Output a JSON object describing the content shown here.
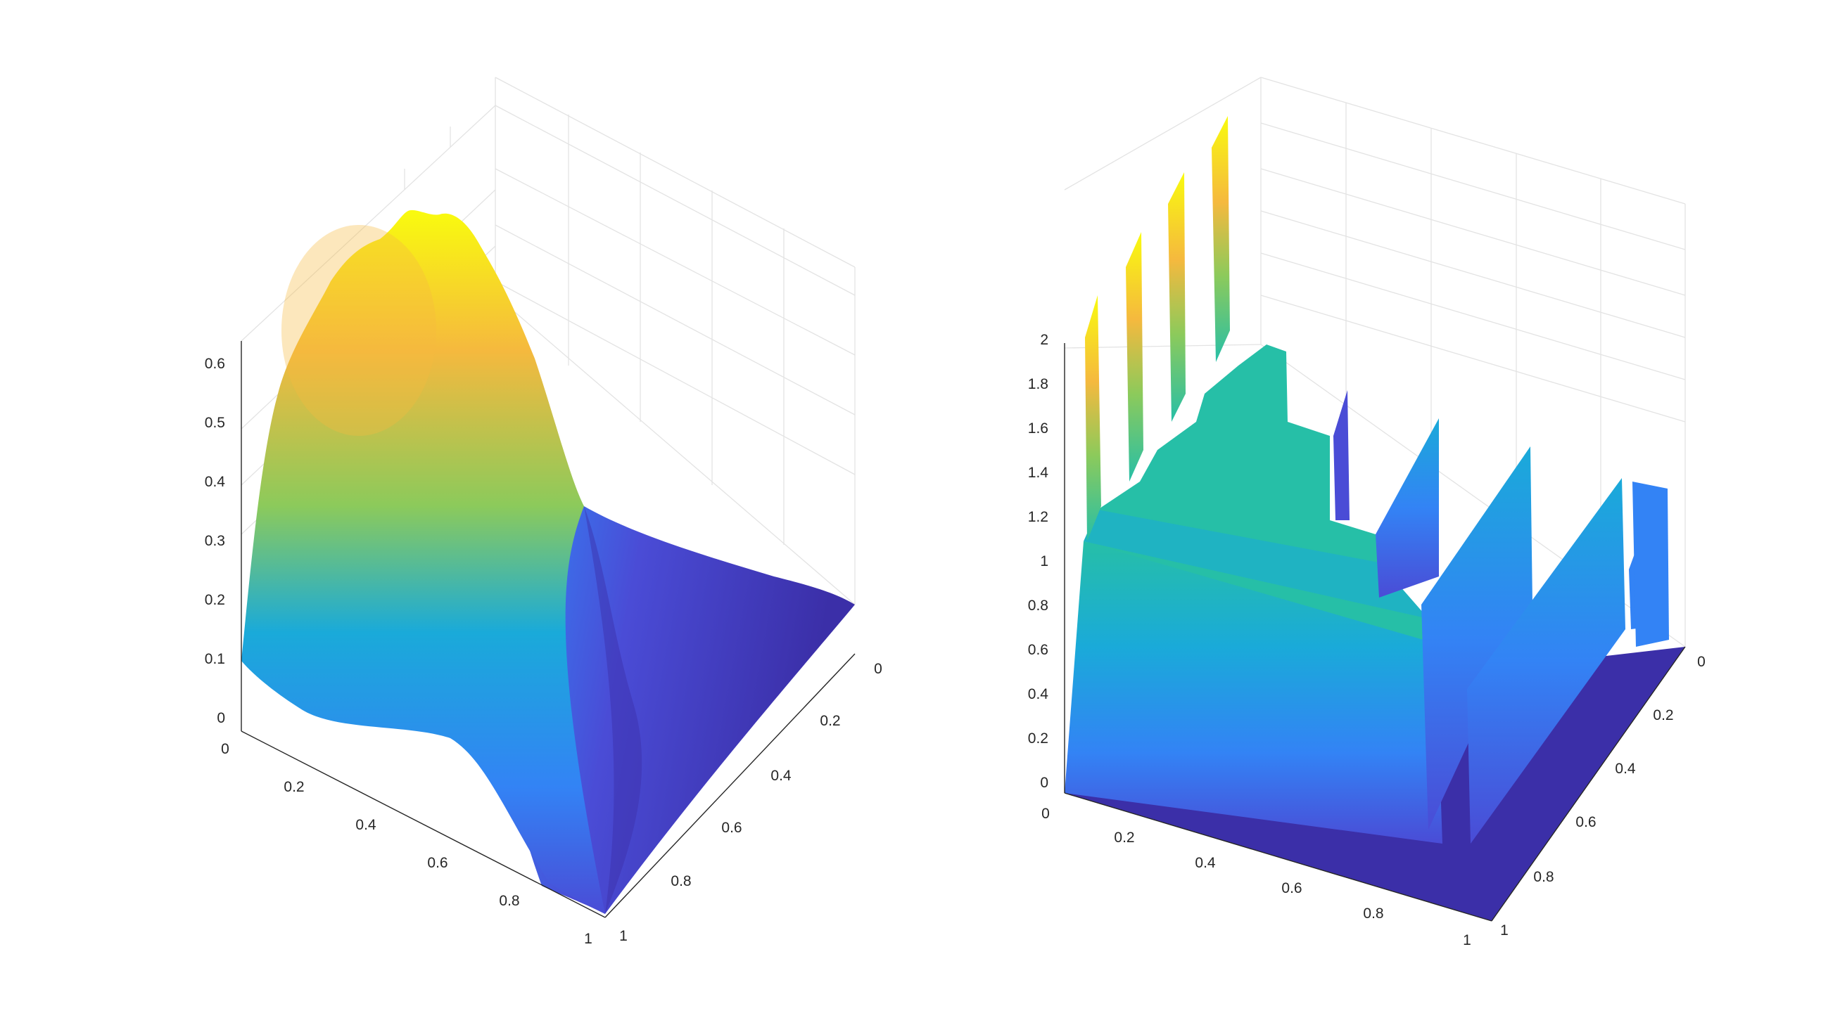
{
  "chart_data": [
    {
      "type": "surface",
      "x_ticks": [
        "0",
        "0.2",
        "0.4",
        "0.6",
        "0.8",
        "1"
      ],
      "y_ticks": [
        "0",
        "0.2",
        "0.4",
        "0.6",
        "0.8",
        "1"
      ],
      "z_ticks": [
        "0",
        "0.1",
        "0.2",
        "0.3",
        "0.4",
        "0.5",
        "0.6"
      ],
      "xlim": [
        0,
        1
      ],
      "ylim": [
        0,
        1
      ],
      "zlim": [
        0,
        0.6
      ],
      "grid": true,
      "colormap": "parula",
      "surface_summary": {
        "peak_value": 0.62,
        "peak_near": "x ≈ 0.15, y ≈ 0.6",
        "corner_values": {
          "x0_y0": 0.05,
          "x0_y1": 0.55,
          "x1_y0": 0.15,
          "x1_y1": 0.0
        }
      }
    },
    {
      "type": "surface",
      "x_ticks": [
        "0",
        "0.2",
        "0.4",
        "0.6",
        "0.8",
        "1"
      ],
      "y_ticks": [
        "0",
        "0.2",
        "0.4",
        "0.6",
        "0.8",
        "1"
      ],
      "z_ticks": [
        "0",
        "0.2",
        "0.4",
        "0.6",
        "0.8",
        "1",
        "1.2",
        "1.4",
        "1.6",
        "1.8",
        "2"
      ],
      "xlim": [
        0,
        1
      ],
      "ylim": [
        0,
        1
      ],
      "zlim": [
        0,
        2
      ],
      "grid": true,
      "colormap": "parula",
      "surface_summary": {
        "plateau_value": 1.0,
        "spike_max": 2.1,
        "spikes_along": "x = 0 edge, y ≈ 0.6–1"
      }
    }
  ],
  "colormap_stops": [
    "#352a87",
    "#4a4cd6",
    "#3383f5",
    "#1aaad9",
    "#26bfa7",
    "#8cca5b",
    "#f5b93e",
    "#f9fb0e"
  ]
}
